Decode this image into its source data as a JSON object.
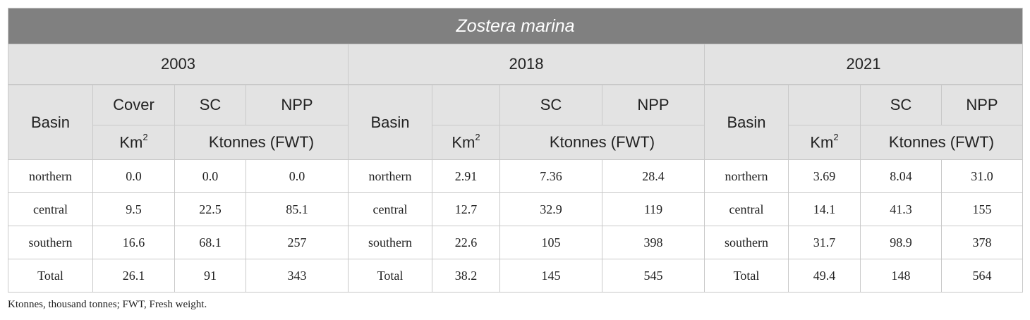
{
  "title": "Zostera marina",
  "years": [
    "2003",
    "2018",
    "2021"
  ],
  "headers": {
    "basin": "Basin",
    "cover": "Cover",
    "sc": "SC",
    "npp": "NPP",
    "km": "Km",
    "km_sup": "2",
    "ktonnes": "Ktonnes (FWT)"
  },
  "rows": [
    {
      "basin": "northern",
      "y2003": [
        "0.0",
        "0.0",
        "0.0"
      ],
      "y2018": [
        "2.91",
        "7.36",
        "28.4"
      ],
      "y2021": [
        "3.69",
        "8.04",
        "31.0"
      ]
    },
    {
      "basin": "central",
      "y2003": [
        "9.5",
        "22.5",
        "85.1"
      ],
      "y2018": [
        "12.7",
        "32.9",
        "119"
      ],
      "y2021": [
        "14.1",
        "41.3",
        "155"
      ]
    },
    {
      "basin": "southern",
      "y2003": [
        "16.6",
        "68.1",
        "257"
      ],
      "y2018": [
        "22.6",
        "105",
        "398"
      ],
      "y2021": [
        "31.7",
        "98.9",
        "378"
      ]
    },
    {
      "basin": "Total",
      "y2003": [
        "26.1",
        "91",
        "343"
      ],
      "y2018": [
        "38.2",
        "145",
        "545"
      ],
      "y2021": [
        "49.4",
        "148",
        "564"
      ]
    }
  ],
  "footnote": "Ktonnes, thousand tonnes; FWT, Fresh weight."
}
